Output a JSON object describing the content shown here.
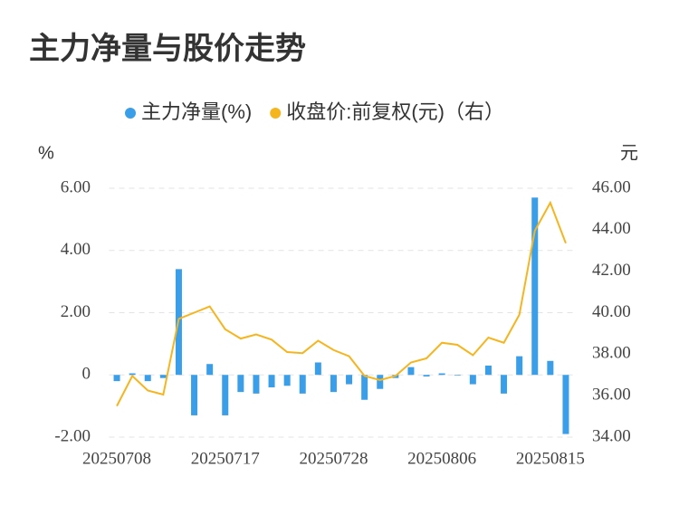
{
  "chart_data": {
    "type": "bar",
    "title": "主力净量与股价走势",
    "y_label": "%",
    "y2_label": "元",
    "categories": [
      "20250708",
      null,
      null,
      null,
      null,
      null,
      null,
      "20250717",
      null,
      null,
      null,
      null,
      null,
      null,
      "20250728",
      null,
      null,
      null,
      null,
      null,
      null,
      "20250806",
      null,
      null,
      null,
      null,
      null,
      null,
      "20250815",
      null
    ],
    "series": [
      {
        "name": "主力净量(%)",
        "color": "#3a9ee9",
        "type": "bar",
        "values": [
          -0.2,
          0.05,
          -0.2,
          -0.1,
          3.4,
          -1.3,
          0.35,
          -1.3,
          -0.55,
          -0.6,
          -0.4,
          -0.35,
          -0.6,
          0.4,
          -0.55,
          -0.3,
          -0.8,
          -0.45,
          -0.1,
          0.25,
          -0.05,
          0.05,
          -0.02,
          -0.3,
          0.3,
          -0.6,
          0.6,
          5.7,
          0.45,
          -1.9
        ]
      },
      {
        "name": "收盘价:前复权(元)（右）",
        "color": "#f5b51f",
        "type": "line",
        "axis": "y2",
        "values": [
          35.5,
          36.95,
          36.25,
          36.05,
          39.7,
          40.0,
          40.3,
          39.2,
          38.75,
          38.95,
          38.7,
          38.1,
          38.05,
          38.65,
          38.2,
          37.9,
          36.95,
          36.75,
          36.95,
          37.6,
          37.8,
          38.55,
          38.45,
          37.95,
          38.8,
          38.55,
          39.9,
          43.95,
          45.3,
          43.35
        ]
      }
    ],
    "ylim": [
      -2,
      6
    ],
    "yticks": [
      {
        "value": -2,
        "label": "-2.00"
      },
      0,
      {
        "value": 2,
        "label": "2.00"
      },
      {
        "value": 4,
        "label": "4.00"
      },
      {
        "value": 6,
        "label": "6.00"
      }
    ],
    "y2lim": [
      34,
      46
    ],
    "y2ticks": [
      {
        "value": 34,
        "label": "34.00"
      },
      {
        "value": 36,
        "label": "36.00"
      },
      {
        "value": 38,
        "label": "38.00"
      },
      {
        "value": 40,
        "label": "40.00"
      },
      {
        "value": 42,
        "label": "42.00"
      },
      {
        "value": 44,
        "label": "44.00"
      },
      {
        "value": 46,
        "label": "46.00"
      }
    ],
    "grid": true
  }
}
